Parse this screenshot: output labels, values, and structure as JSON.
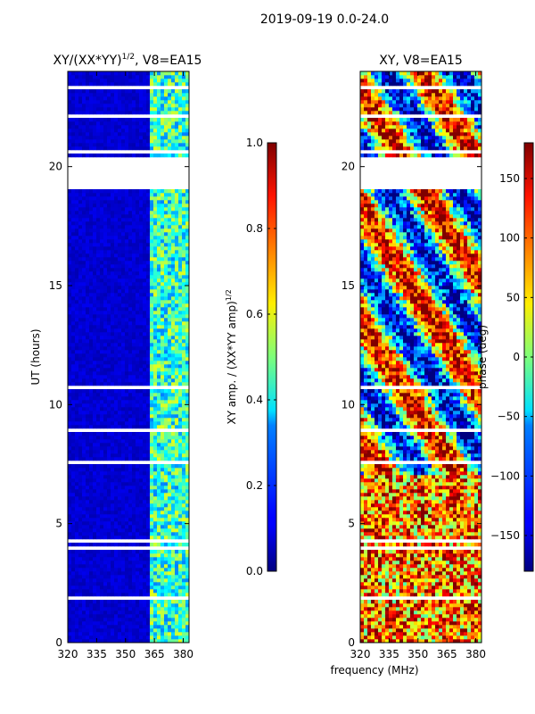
{
  "figure": {
    "suptitle": "2019-09-19 0.0-24.0",
    "xlabel": "frequency (MHz)"
  },
  "chart_data": [
    {
      "type": "heatmap",
      "title_main": "XY/(XX*YY)",
      "title_sup": "1/2",
      "title_tail": ", V8=EA15",
      "ylabel": "UT (hours)",
      "x_ticks": [
        320,
        335,
        350,
        365,
        380
      ],
      "y_ticks": [
        0,
        5,
        10,
        15,
        20
      ],
      "xlim": [
        320,
        383
      ],
      "ylim": [
        0,
        24
      ],
      "gaps_hours": [
        [
          19.0,
          20.3
        ],
        [
          22.0,
          22.1
        ],
        [
          23.2,
          23.35
        ]
      ],
      "colorbar": {
        "label_main": "XY amp. / (XX*YY amp)",
        "label_sup": "1/2",
        "range": [
          0.0,
          1.0
        ],
        "ticks": [
          "0.0",
          "0.2",
          "0.4",
          "0.6",
          "0.8",
          "1.0"
        ],
        "tick_values": [
          0.0,
          0.2,
          0.4,
          0.6,
          0.8,
          1.0
        ]
      }
    },
    {
      "type": "heatmap",
      "title": "XY, V8=EA15",
      "ylabel": "phase (deg)",
      "x_ticks": [
        320,
        335,
        350,
        365,
        380
      ],
      "y_ticks": [
        0,
        5,
        10,
        15,
        20
      ],
      "xlim": [
        320,
        383
      ],
      "ylim": [
        0,
        24
      ],
      "gaps_hours": [
        [
          19.0,
          20.3
        ],
        [
          22.0,
          22.1
        ],
        [
          23.2,
          23.35
        ]
      ],
      "colorbar": {
        "range": [
          -180,
          180
        ],
        "ticks": [
          "150",
          "100",
          "50",
          "0",
          "−50",
          "−100",
          "−150"
        ],
        "tick_values": [
          150,
          100,
          50,
          0,
          -50,
          -100,
          -150
        ]
      }
    }
  ]
}
